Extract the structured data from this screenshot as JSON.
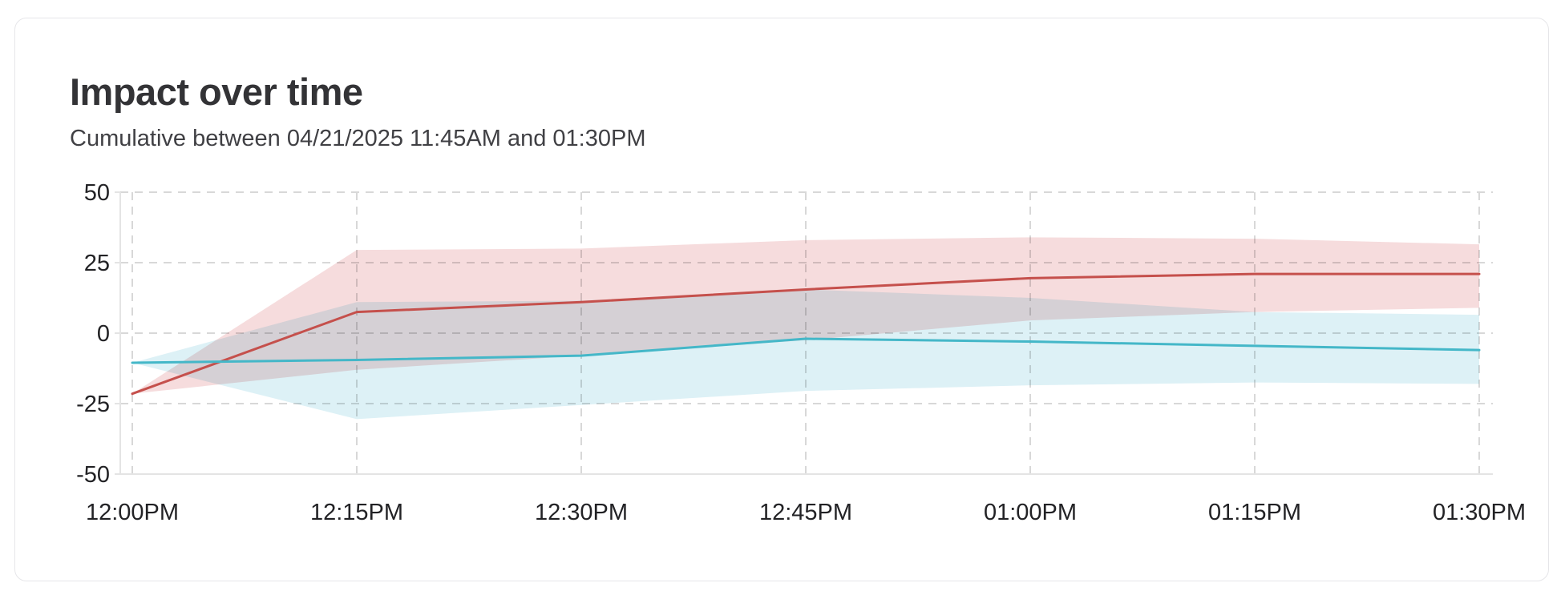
{
  "card": {
    "title": "Impact over time",
    "subtitle": "Cumulative between 04/21/2025 11:45AM and 01:30PM"
  },
  "chart_data": {
    "type": "line",
    "title": "Impact over time",
    "subtitle": "Cumulative between 04/21/2025 11:45AM and 01:30PM",
    "xlabel": "",
    "ylabel": "",
    "categories": [
      "12:00PM",
      "12:15PM",
      "12:30PM",
      "12:45PM",
      "01:00PM",
      "01:15PM",
      "01:30PM"
    ],
    "y_ticks": [
      50,
      25,
      0,
      -25,
      -50
    ],
    "ylim": [
      -50,
      50
    ],
    "grid": "dashed",
    "legend_position": "none",
    "colors": {
      "grid_dashed": "#d8d8d8",
      "axis_line": "#e4e4e4",
      "tick_text": "#222225"
    },
    "series": [
      {
        "id": "red",
        "line_color": "#c5504c",
        "band_color": "#f6dcdd",
        "values": [
          -21.5,
          7.5,
          11,
          15.5,
          19.5,
          21,
          21
        ],
        "band_low": [
          -21.5,
          -13,
          -8,
          -2.5,
          4.5,
          7.5,
          9
        ],
        "band_high": [
          -21.5,
          29.5,
          30,
          33,
          34,
          33.5,
          31.5
        ]
      },
      {
        "id": "teal",
        "line_color": "#44b7c8",
        "band_color": "#ddf1f6",
        "values": [
          -10.5,
          -9.5,
          -8,
          -2,
          -3,
          -4.5,
          -6
        ],
        "band_low": [
          -10.5,
          -30.5,
          -25.5,
          -20.5,
          -18.5,
          -17.5,
          -18
        ],
        "band_high": [
          -10.5,
          11,
          11.5,
          15.5,
          12.5,
          7.5,
          6.5
        ]
      }
    ]
  }
}
